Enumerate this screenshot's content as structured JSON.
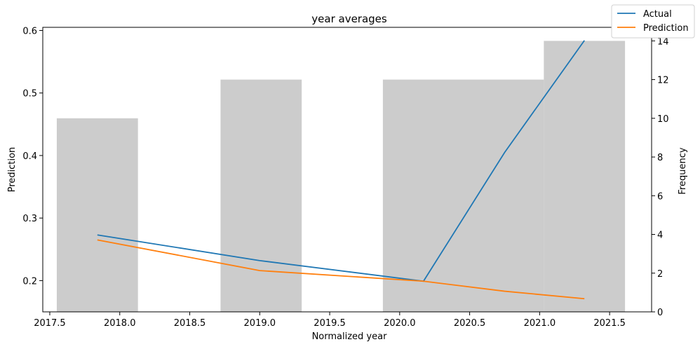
{
  "chart_data": {
    "type": "bar+line",
    "title": "year averages",
    "xlabel": "Normalized year",
    "ylabel_left": "Prediction",
    "ylabel_right": "Frequency",
    "xlim": [
      2017.45,
      2021.8
    ],
    "ylim_left": [
      0.15,
      0.605
    ],
    "ylim_right": [
      0,
      14.7
    ],
    "x_ticks": [
      "2017.5",
      "2018.0",
      "2018.5",
      "2019.0",
      "2019.5",
      "2020.0",
      "2020.5",
      "2021.0",
      "2021.5"
    ],
    "y_left_ticks": [
      "0.2",
      "0.3",
      "0.4",
      "0.5",
      "0.6"
    ],
    "y_right_ticks": [
      "0",
      "2",
      "4",
      "6",
      "8",
      "10",
      "12",
      "14"
    ],
    "histogram": {
      "color": "#cccccc",
      "bins": [
        {
          "x0": 2017.55,
          "x1": 2018.13,
          "count": 10
        },
        {
          "x0": 2018.72,
          "x1": 2019.3,
          "count": 12
        },
        {
          "x0": 2019.88,
          "x1": 2021.03,
          "count": 12
        },
        {
          "x0": 2021.03,
          "x1": 2021.61,
          "count": 14
        }
      ]
    },
    "series": [
      {
        "name": "Actual",
        "color": "#1f77b4",
        "x": [
          2017.84,
          2019.0,
          2020.17,
          2020.75,
          2021.32
        ],
        "y": [
          0.273,
          0.232,
          0.199,
          0.405,
          0.584
        ]
      },
      {
        "name": "Prediction",
        "color": "#ff7f0e",
        "x": [
          2017.84,
          2019.0,
          2020.17,
          2020.75,
          2021.32
        ],
        "y": [
          0.265,
          0.216,
          0.199,
          0.183,
          0.171
        ]
      }
    ],
    "legend": {
      "position": "top-right",
      "entries": [
        "Actual",
        "Prediction"
      ]
    }
  }
}
